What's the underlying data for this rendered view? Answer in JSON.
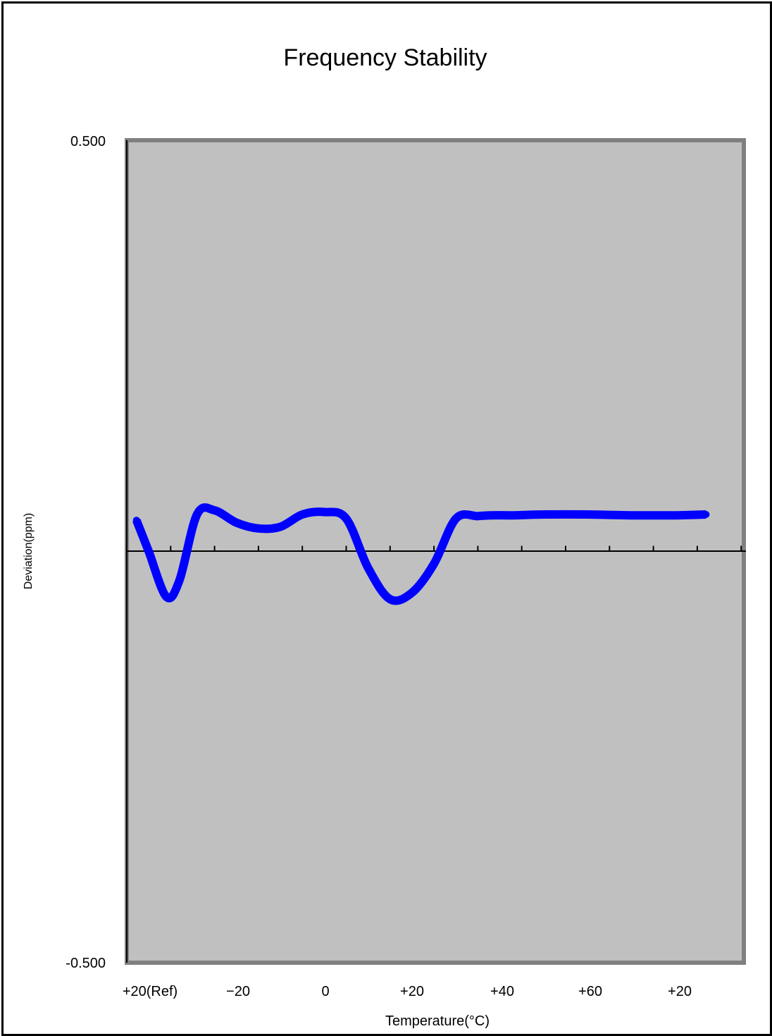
{
  "chart_data": {
    "type": "line",
    "title": "Frequency Stability",
    "xlabel": "Temperature(°C)",
    "ylabel": "Deviation(ppm)",
    "ylim": [
      -0.5,
      0.5
    ],
    "y_tick_labels": [
      "0.500",
      "-0.500"
    ],
    "x_tick_labels": [
      "+20(Ref)",
      "−20",
      "0",
      "+20",
      "+40",
      "+60",
      "+20"
    ],
    "grid": false,
    "legend": "none",
    "colors": {
      "plot_background": "#c0c0c0",
      "plot_border": "#808080",
      "series_line": "#0000ff",
      "zero_line": "#000000"
    },
    "series": [
      {
        "x": [
          0.22,
          0.5,
          0.9,
          1.2,
          1.6,
          2.0,
          2.5,
          3.0,
          3.5,
          4.0,
          4.5,
          5.0,
          5.5,
          6.0,
          6.5,
          7.0,
          7.5,
          8.0,
          8.3,
          8.8,
          9.5,
          10.5,
          11.5,
          12.5,
          13.2
        ],
        "y": [
          0.038,
          0.0,
          -0.055,
          -0.035,
          0.045,
          0.05,
          0.035,
          0.028,
          0.03,
          0.045,
          0.048,
          0.04,
          -0.02,
          -0.058,
          -0.05,
          -0.015,
          0.04,
          0.043,
          0.044,
          0.044,
          0.045,
          0.045,
          0.044,
          0.044,
          0.045
        ]
      }
    ]
  }
}
